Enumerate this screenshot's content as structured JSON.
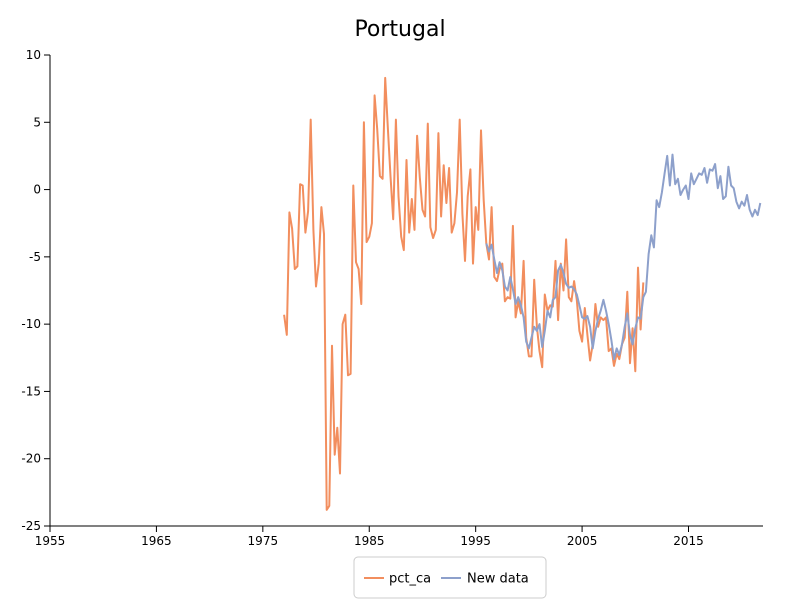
{
  "chart_data": {
    "type": "line",
    "title": "Portugal",
    "xlabel": "",
    "ylabel": "",
    "xlim": [
      1955,
      2022
    ],
    "ylim": [
      -25,
      10
    ],
    "x_ticks": [
      1955,
      1965,
      1975,
      1985,
      1995,
      2005,
      2015
    ],
    "y_ticks": [
      10,
      5,
      0,
      -5,
      -10,
      -15,
      -20,
      -25
    ],
    "grid": false,
    "legend_position": "bottom-center",
    "series": [
      {
        "name": "pct_ca",
        "color": "#f28e5e",
        "points": [
          [
            1977.0,
            -9.3
          ],
          [
            1977.25,
            -10.8
          ],
          [
            1977.5,
            -1.7
          ],
          [
            1977.75,
            -2.9
          ],
          [
            1978.0,
            -5.9
          ],
          [
            1978.25,
            -5.7
          ],
          [
            1978.5,
            0.4
          ],
          [
            1978.75,
            0.3
          ],
          [
            1979.0,
            -3.2
          ],
          [
            1979.25,
            -1.6
          ],
          [
            1979.5,
            5.2
          ],
          [
            1979.75,
            -3.0
          ],
          [
            1980.0,
            -7.2
          ],
          [
            1980.25,
            -5.5
          ],
          [
            1980.5,
            -1.3
          ],
          [
            1980.75,
            -3.3
          ],
          [
            1981.0,
            -23.8
          ],
          [
            1981.25,
            -23.5
          ],
          [
            1981.5,
            -11.6
          ],
          [
            1981.75,
            -19.7
          ],
          [
            1982.0,
            -17.7
          ],
          [
            1982.25,
            -21.1
          ],
          [
            1982.5,
            -10.0
          ],
          [
            1982.75,
            -9.3
          ],
          [
            1983.0,
            -13.8
          ],
          [
            1983.25,
            -13.7
          ],
          [
            1983.5,
            0.3
          ],
          [
            1983.75,
            -5.4
          ],
          [
            1984.0,
            -5.9
          ],
          [
            1984.25,
            -8.5
          ],
          [
            1984.5,
            5.0
          ],
          [
            1984.75,
            -3.9
          ],
          [
            1985.0,
            -3.5
          ],
          [
            1985.25,
            -2.5
          ],
          [
            1985.5,
            7.0
          ],
          [
            1985.75,
            4.5
          ],
          [
            1986.0,
            1.0
          ],
          [
            1986.25,
            0.8
          ],
          [
            1986.5,
            8.3
          ],
          [
            1986.75,
            4.5
          ],
          [
            1987.0,
            1.0
          ],
          [
            1987.25,
            -2.2
          ],
          [
            1987.5,
            5.2
          ],
          [
            1987.75,
            -0.5
          ],
          [
            1988.0,
            -3.5
          ],
          [
            1988.25,
            -4.5
          ],
          [
            1988.5,
            2.2
          ],
          [
            1988.75,
            -3.2
          ],
          [
            1989.0,
            -0.7
          ],
          [
            1989.25,
            -3.0
          ],
          [
            1989.5,
            4.0
          ],
          [
            1989.75,
            0.9
          ],
          [
            1990.0,
            -1.5
          ],
          [
            1990.25,
            -2.0
          ],
          [
            1990.5,
            4.9
          ],
          [
            1990.75,
            -2.8
          ],
          [
            1991.0,
            -3.6
          ],
          [
            1991.25,
            -3.0
          ],
          [
            1991.5,
            4.2
          ],
          [
            1991.75,
            -2.0
          ],
          [
            1992.0,
            1.8
          ],
          [
            1992.25,
            -1.0
          ],
          [
            1992.5,
            1.6
          ],
          [
            1992.75,
            -3.2
          ],
          [
            1993.0,
            -2.5
          ],
          [
            1993.25,
            -0.2
          ],
          [
            1993.5,
            5.2
          ],
          [
            1993.75,
            -1.8
          ],
          [
            1994.0,
            -5.3
          ],
          [
            1994.25,
            -0.5
          ],
          [
            1994.5,
            1.5
          ],
          [
            1994.75,
            -5.5
          ],
          [
            1995.0,
            -1.3
          ],
          [
            1995.25,
            -3.0
          ],
          [
            1995.5,
            4.4
          ],
          [
            1995.75,
            -0.8
          ],
          [
            1996.0,
            -4.0
          ],
          [
            1996.25,
            -5.2
          ],
          [
            1996.5,
            -1.3
          ],
          [
            1996.75,
            -6.5
          ],
          [
            1997.0,
            -6.8
          ],
          [
            1997.25,
            -5.9
          ],
          [
            1997.5,
            -5.5
          ],
          [
            1997.75,
            -8.3
          ],
          [
            1998.0,
            -8.0
          ],
          [
            1998.25,
            -8.1
          ],
          [
            1998.5,
            -2.7
          ],
          [
            1998.75,
            -9.5
          ],
          [
            1999.0,
            -8.3
          ],
          [
            1999.25,
            -9.2
          ],
          [
            1999.5,
            -5.3
          ],
          [
            1999.75,
            -11.0
          ],
          [
            2000.0,
            -12.4
          ],
          [
            2000.25,
            -12.4
          ],
          [
            2000.5,
            -6.7
          ],
          [
            2000.75,
            -10.2
          ],
          [
            2001.0,
            -12.0
          ],
          [
            2001.25,
            -13.2
          ],
          [
            2001.5,
            -7.8
          ],
          [
            2001.75,
            -9.0
          ],
          [
            2002.0,
            -8.6
          ],
          [
            2002.25,
            -8.7
          ],
          [
            2002.5,
            -5.3
          ],
          [
            2002.75,
            -9.7
          ],
          [
            2003.0,
            -5.5
          ],
          [
            2003.25,
            -7.5
          ],
          [
            2003.5,
            -3.7
          ],
          [
            2003.75,
            -8.0
          ],
          [
            2004.0,
            -8.3
          ],
          [
            2004.25,
            -6.8
          ],
          [
            2004.5,
            -8.2
          ],
          [
            2004.75,
            -10.5
          ],
          [
            2005.0,
            -11.3
          ],
          [
            2005.25,
            -8.8
          ],
          [
            2005.5,
            -10.8
          ],
          [
            2005.75,
            -12.7
          ],
          [
            2006.0,
            -11.5
          ],
          [
            2006.25,
            -8.5
          ],
          [
            2006.5,
            -10.2
          ],
          [
            2006.75,
            -9.5
          ],
          [
            2007.0,
            -9.7
          ],
          [
            2007.25,
            -9.5
          ],
          [
            2007.5,
            -12.0
          ],
          [
            2007.75,
            -11.8
          ],
          [
            2008.0,
            -13.1
          ],
          [
            2008.25,
            -12.2
          ],
          [
            2008.5,
            -12.6
          ],
          [
            2008.75,
            -11.5
          ],
          [
            2009.0,
            -11.0
          ],
          [
            2009.25,
            -7.6
          ],
          [
            2009.5,
            -12.9
          ],
          [
            2009.75,
            -10.3
          ],
          [
            2010.0,
            -13.5
          ],
          [
            2010.25,
            -5.8
          ],
          [
            2010.5,
            -10.4
          ],
          [
            2010.75,
            -6.9
          ]
        ]
      },
      {
        "name": "New data",
        "color": "#8da0cb",
        "points": [
          [
            1996.0,
            -4.0
          ],
          [
            1996.25,
            -4.6
          ],
          [
            1996.5,
            -4.1
          ],
          [
            1996.75,
            -5.2
          ],
          [
            1997.0,
            -6.2
          ],
          [
            1997.25,
            -5.4
          ],
          [
            1997.5,
            -6.0
          ],
          [
            1997.75,
            -7.2
          ],
          [
            1998.0,
            -7.5
          ],
          [
            1998.25,
            -6.5
          ],
          [
            1998.5,
            -7.4
          ],
          [
            1998.75,
            -8.5
          ],
          [
            1999.0,
            -8.0
          ],
          [
            1999.25,
            -8.6
          ],
          [
            1999.5,
            -9.5
          ],
          [
            1999.75,
            -11.3
          ],
          [
            2000.0,
            -11.8
          ],
          [
            2000.25,
            -11.0
          ],
          [
            2000.5,
            -10.2
          ],
          [
            2000.75,
            -10.5
          ],
          [
            2001.0,
            -10.0
          ],
          [
            2001.25,
            -11.7
          ],
          [
            2001.5,
            -10.5
          ],
          [
            2001.75,
            -9.0
          ],
          [
            2002.0,
            -9.5
          ],
          [
            2002.25,
            -8.2
          ],
          [
            2002.5,
            -8.0
          ],
          [
            2002.75,
            -6.0
          ],
          [
            2003.0,
            -5.6
          ],
          [
            2003.25,
            -6.2
          ],
          [
            2003.5,
            -7.0
          ],
          [
            2003.75,
            -7.3
          ],
          [
            2004.0,
            -7.2
          ],
          [
            2004.25,
            -7.4
          ],
          [
            2004.5,
            -7.8
          ],
          [
            2004.75,
            -8.6
          ],
          [
            2005.0,
            -9.5
          ],
          [
            2005.25,
            -9.6
          ],
          [
            2005.5,
            -9.4
          ],
          [
            2005.75,
            -10.2
          ],
          [
            2006.0,
            -11.8
          ],
          [
            2006.25,
            -10.5
          ],
          [
            2006.5,
            -9.6
          ],
          [
            2006.75,
            -9.0
          ],
          [
            2007.0,
            -8.2
          ],
          [
            2007.25,
            -9.0
          ],
          [
            2007.5,
            -10.0
          ],
          [
            2007.75,
            -11.2
          ],
          [
            2008.0,
            -12.6
          ],
          [
            2008.25,
            -11.8
          ],
          [
            2008.5,
            -12.3
          ],
          [
            2008.75,
            -11.5
          ],
          [
            2009.0,
            -10.2
          ],
          [
            2009.25,
            -9.2
          ],
          [
            2009.5,
            -10.8
          ],
          [
            2009.75,
            -11.5
          ],
          [
            2010.0,
            -10.3
          ],
          [
            2010.25,
            -9.5
          ],
          [
            2010.5,
            -9.6
          ],
          [
            2010.75,
            -8.0
          ],
          [
            2011.0,
            -7.6
          ],
          [
            2011.25,
            -4.8
          ],
          [
            2011.5,
            -3.4
          ],
          [
            2011.75,
            -4.3
          ],
          [
            2012.0,
            -0.8
          ],
          [
            2012.25,
            -1.3
          ],
          [
            2012.5,
            -0.2
          ],
          [
            2012.75,
            1.2
          ],
          [
            2013.0,
            2.5
          ],
          [
            2013.25,
            0.3
          ],
          [
            2013.5,
            2.6
          ],
          [
            2013.75,
            0.4
          ],
          [
            2014.0,
            0.8
          ],
          [
            2014.25,
            -0.4
          ],
          [
            2014.5,
            0.0
          ],
          [
            2014.75,
            0.3
          ],
          [
            2015.0,
            -0.7
          ],
          [
            2015.25,
            1.2
          ],
          [
            2015.5,
            0.4
          ],
          [
            2015.75,
            0.8
          ],
          [
            2016.0,
            1.2
          ],
          [
            2016.25,
            1.1
          ],
          [
            2016.5,
            1.6
          ],
          [
            2016.75,
            0.5
          ],
          [
            2017.0,
            1.5
          ],
          [
            2017.25,
            1.4
          ],
          [
            2017.5,
            1.9
          ],
          [
            2017.75,
            0.1
          ],
          [
            2018.0,
            1.0
          ],
          [
            2018.25,
            -0.7
          ],
          [
            2018.5,
            -0.5
          ],
          [
            2018.75,
            1.7
          ],
          [
            2019.0,
            0.3
          ],
          [
            2019.25,
            0.1
          ],
          [
            2019.5,
            -0.9
          ],
          [
            2019.75,
            -1.4
          ],
          [
            2020.0,
            -0.9
          ],
          [
            2020.25,
            -1.2
          ],
          [
            2020.5,
            -0.4
          ],
          [
            2020.75,
            -1.5
          ],
          [
            2021.0,
            -2.0
          ],
          [
            2021.25,
            -1.5
          ],
          [
            2021.5,
            -1.9
          ],
          [
            2021.75,
            -1.0
          ]
        ]
      }
    ]
  }
}
